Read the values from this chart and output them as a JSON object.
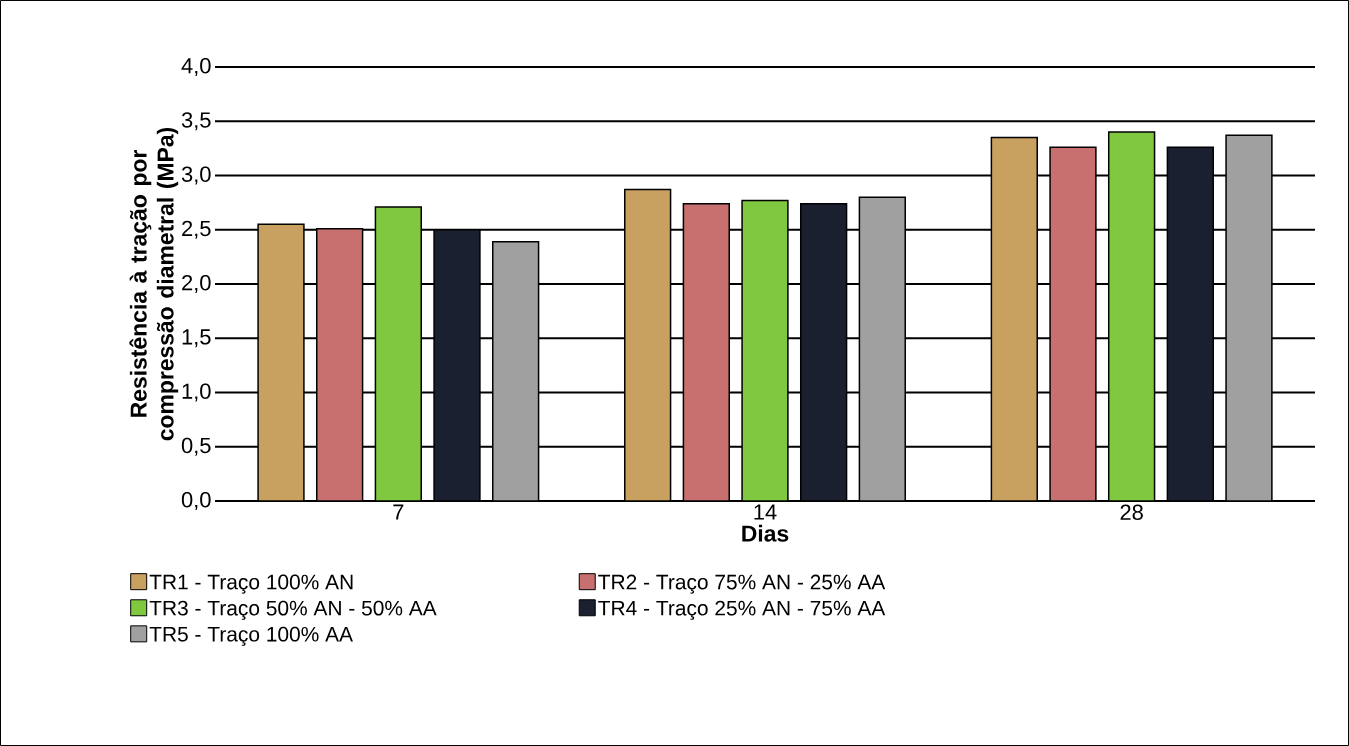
{
  "chart_data": {
    "type": "bar",
    "xlabel": "Dias",
    "ylabel": "Resistência à tração por compressão diametral  (MPa)",
    "categories": [
      "7",
      "14",
      "28"
    ],
    "series": [
      {
        "name": "TR1 - Traço 100% AN",
        "color": "#c8a060",
        "values": [
          2.55,
          2.87,
          3.35
        ]
      },
      {
        "name": "TR2 - Traço 75% AN - 25% AA",
        "color": "#c87070",
        "values": [
          2.51,
          2.74,
          3.26
        ]
      },
      {
        "name": "TR3 - Traço 50% AN - 50% AA",
        "color": "#80c840",
        "values": [
          2.71,
          2.77,
          3.4
        ]
      },
      {
        "name": "TR4 - Traço 25% AN - 75% AA",
        "color": "#1a2030",
        "values": [
          2.5,
          2.74,
          3.26
        ]
      },
      {
        "name": "TR5 - Traço 100% AA",
        "color": "#a0a0a0",
        "values": [
          2.39,
          2.8,
          3.37
        ]
      }
    ],
    "ylim": [
      0,
      4
    ],
    "yticks": [
      {
        "value": 0,
        "label": "0,0"
      },
      {
        "value": 0.5,
        "label": "0,5"
      },
      {
        "value": 1,
        "label": "1,0"
      },
      {
        "value": 1.5,
        "label": "1,5"
      },
      {
        "value": 2,
        "label": "2,0"
      },
      {
        "value": 2.5,
        "label": "2,5"
      },
      {
        "value": 3,
        "label": "3,0"
      },
      {
        "value": 3.5,
        "label": "3,5"
      },
      {
        "value": 4,
        "label": "4,0"
      }
    ],
    "grid": "y",
    "legend": "bottom"
  }
}
